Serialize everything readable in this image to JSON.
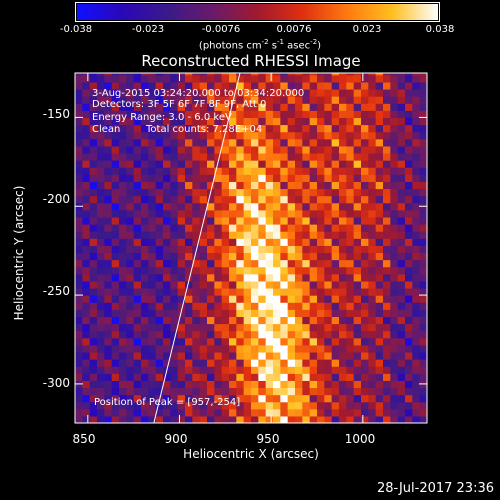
{
  "colorbar": {
    "ticks": [
      "-0.038",
      "-0.023",
      "-0.0076",
      "0.0076",
      "0.023",
      "0.038"
    ],
    "unit_prefix": "(photons cm",
    "unit_exp1": "-2",
    "unit_mid1": " s",
    "unit_exp2": "-1",
    "unit_mid2": " asec",
    "unit_exp3": "-2",
    "unit_suffix": ")",
    "stops": [
      "#1010ff",
      "#2a08b8",
      "#3a1a8a",
      "#6a1a6a",
      "#a01a30",
      "#e03010",
      "#ff7a10",
      "#ffc020",
      "#ffffff"
    ]
  },
  "chart_data": {
    "type": "heatmap",
    "title": "Reconstructed RHESSI Image",
    "xlabel": "Heliocentric X (arcsec)",
    "ylabel": "Heliocentric Y (arcsec)",
    "xlim": [
      843,
      1035
    ],
    "ylim": [
      -322,
      -125
    ],
    "xticks": [
      850,
      900,
      950,
      1000
    ],
    "yticks": [
      -150,
      -200,
      -250,
      -300
    ],
    "color_range": [
      -0.038,
      0.038
    ],
    "peak_position": [
      957,
      -254
    ],
    "limb_points": [
      [
        886,
        -322
      ],
      [
        933,
        -125
      ]
    ]
  },
  "annotations": {
    "time_range": "3-Aug-2015 03:24:20.000 to 03:34:20.000",
    "detectors": "Detectors: 3F 5F 6F 7F 8F 9F, Att 0",
    "energy": "Energy Range: 3.0 - 6.0 keV",
    "clean_label": "Clean",
    "total_counts": "Total counts: 7.28E+04",
    "peak_text": "Position of Peak = [957,-254]"
  },
  "footer": {
    "date": "28-Jul-2017 23:36"
  }
}
